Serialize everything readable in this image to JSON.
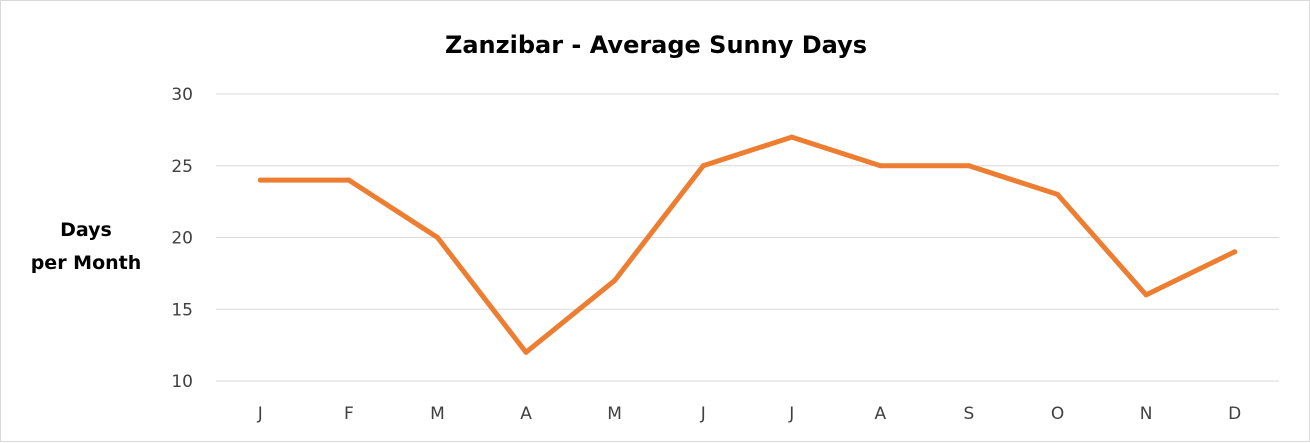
{
  "chart_data": {
    "type": "line",
    "title": "Zanzibar - Average Sunny Days",
    "xlabel": "",
    "ylabel_lines": [
      "Days",
      "per Month"
    ],
    "categories": [
      "J",
      "F",
      "M",
      "A",
      "M",
      "J",
      "J",
      "A",
      "S",
      "O",
      "N",
      "D"
    ],
    "series": [
      {
        "values": [
          24,
          24,
          20,
          12,
          17,
          25,
          27,
          25,
          25,
          23,
          16,
          19
        ],
        "color": "#ED7D31"
      }
    ],
    "ylim": [
      10,
      30
    ],
    "yticks": [
      "10",
      "15",
      "20",
      "25",
      "30"
    ],
    "grid": true,
    "legend": "none"
  }
}
